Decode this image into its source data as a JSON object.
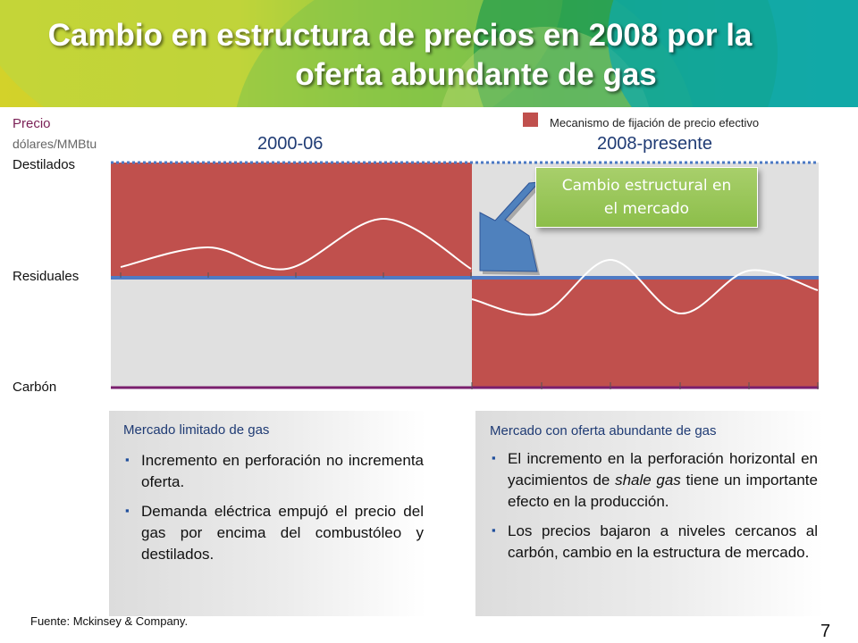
{
  "header": {
    "title_line1": "Cambio en estructura de precios en 2008 por la",
    "title_line2": "oferta abundante de gas"
  },
  "axis": {
    "title": "Precio",
    "unit": "dólares/MMBtu",
    "levels": [
      "Destilados",
      "Residuales",
      "Carbón"
    ]
  },
  "legend": {
    "label": "Mecanismo de fijación de precio efectivo",
    "color": "#c0504d"
  },
  "periods": [
    "2000-06",
    "2008-presente"
  ],
  "callout": {
    "line1": "Cambio estructural en",
    "line2": "el mercado"
  },
  "chart_data": {
    "type": "line",
    "series_period1": [
      0.3,
      0.85,
      0.25,
      1.65,
      0.25
    ],
    "series_period2": [
      -0.6,
      -1.0,
      0.5,
      -1.0,
      0.2,
      -0.35
    ],
    "colors": {
      "effective": "#c0504d",
      "inactive": "#e0e0e0",
      "distillates_line": "#4a78c4",
      "residuals_line": "#4f7ac4",
      "coal_line": "#7a1f6e",
      "curve": "#ffffff"
    }
  },
  "left_panel": {
    "title": "Mercado limitado de gas",
    "bullets": [
      "Incremento en perforación no incrementa oferta.",
      "Demanda eléctrica empujó el precio del gas por encima del combustóleo y destilados."
    ]
  },
  "right_panel": {
    "title": "Mercado con oferta abundante de gas",
    "bullet1_part1": "El incremento en la perforación horizontal en yacimientos de ",
    "bullet1_italic": "shale gas",
    "bullet1_part2": " tiene un importante efecto en la producción.",
    "bullet2": "Los precios bajaron a niveles cercanos al carbón, cambio en la estructura de mercado."
  },
  "footer": {
    "source": "Fuente: Mckinsey & Company.",
    "page": "7"
  }
}
